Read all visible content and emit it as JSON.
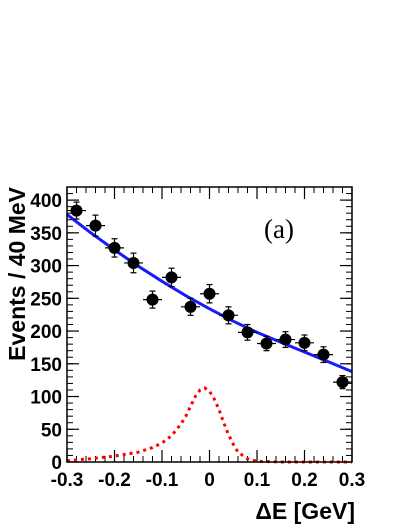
{
  "chart_data": {
    "type": "scatter",
    "title": "",
    "panel_label": "(a)",
    "xlabel": "ΔE [GeV]",
    "ylabel": "Events / 40 MeV",
    "xlim": [
      -0.3,
      0.3
    ],
    "ylim": [
      0,
      420
    ],
    "xticks": [
      "-0.3",
      "-0.2",
      "-0.1",
      "0",
      "0.1",
      "0.2",
      "0.3"
    ],
    "yticks": [
      "0",
      "50",
      "100",
      "150",
      "200",
      "250",
      "300",
      "350",
      "400"
    ],
    "grid": false,
    "series": [
      {
        "kind": "points",
        "color": "#000000",
        "x": [
          -0.28,
          -0.24,
          -0.2,
          -0.16,
          -0.12,
          -0.08,
          -0.04,
          0.0,
          0.04,
          0.08,
          0.12,
          0.16,
          0.2,
          0.24,
          0.28
        ],
        "y": [
          384,
          361,
          327,
          304,
          248,
          282,
          237,
          257,
          224,
          198,
          181,
          187,
          182,
          164,
          122
        ],
        "yerr": [
          13,
          16,
          14,
          15,
          13,
          14,
          13,
          14,
          13,
          12,
          11,
          12,
          12,
          12,
          10
        ],
        "xerr": [
          0.02,
          0.02,
          0.02,
          0.02,
          0.02,
          0.02,
          0.02,
          0.02,
          0.02,
          0.02,
          0.02,
          0.02,
          0.02,
          0.02,
          0.02
        ]
      },
      {
        "kind": "line",
        "style": "solid",
        "color": "#1a1aff",
        "x": [
          -0.3,
          -0.25,
          -0.2,
          -0.15,
          -0.1,
          -0.05,
          0.0,
          0.05,
          0.1,
          0.15,
          0.2,
          0.25,
          0.3
        ],
        "y": [
          378,
          350,
          324,
          299,
          276,
          254,
          234,
          215,
          198,
          183,
          168,
          153,
          138
        ]
      },
      {
        "kind": "line",
        "style": "dotted",
        "color": "#ff0000",
        "x": [
          -0.3,
          -0.25,
          -0.2,
          -0.15,
          -0.12,
          -0.1,
          -0.08,
          -0.06,
          -0.05,
          -0.04,
          -0.03,
          -0.02,
          -0.01,
          0.0,
          0.01,
          0.02,
          0.03,
          0.04,
          0.05,
          0.06,
          0.08,
          0.1,
          0.15,
          0.2,
          0.25,
          0.3
        ],
        "y": [
          2,
          5,
          9,
          15,
          22,
          29,
          40,
          58,
          70,
          85,
          100,
          110,
          113,
          108,
          96,
          80,
          60,
          42,
          27,
          15,
          5,
          1,
          0,
          0,
          0,
          0
        ]
      }
    ]
  }
}
